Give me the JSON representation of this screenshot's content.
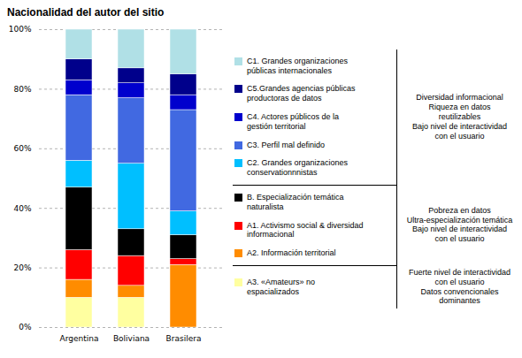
{
  "chart_data": {
    "type": "bar",
    "stacked": true,
    "title": "Nacionalidad del autor del sitio",
    "categories": [
      "Argentina",
      "Boliviana",
      "Brasilera"
    ],
    "series": [
      {
        "name": "A3. «Amateurs» no\nespacializados",
        "color": "#FFFFA0",
        "values": [
          10,
          10,
          0
        ]
      },
      {
        "name": "A2. Información territorial",
        "color": "#FF8C00",
        "values": [
          6,
          4,
          21
        ]
      },
      {
        "name": "A1. Activismo social & diversidad\ninformacional",
        "color": "#FF0000",
        "values": [
          10,
          10,
          2
        ]
      },
      {
        "name": "B. Especialización temática\nnaturalista",
        "color": "#000000",
        "values": [
          21,
          9,
          8
        ]
      },
      {
        "name": "C2. Grandes organizaciones\nconservationnnistas",
        "color": "#00BFFF",
        "values": [
          9,
          22,
          8
        ]
      },
      {
        "name": "C3. Perfil mal definido",
        "color": "#4169E1",
        "values": [
          22,
          22,
          34
        ]
      },
      {
        "name": "C4. Actores públicos de la\ngestión territorial",
        "color": "#0000CD",
        "values": [
          5,
          5,
          5
        ]
      },
      {
        "name": "C5.Grandes agencias públicas\nproductoras de datos",
        "color": "#00008B",
        "values": [
          7,
          5,
          7
        ]
      },
      {
        "name": "C1. Grandes organizaciones\npúblicas internacionales",
        "color": "#B0E0E6",
        "values": [
          10,
          13,
          15
        ]
      }
    ],
    "ylim": [
      0,
      100
    ],
    "yticks": [
      {
        "value": 0,
        "label": "0%"
      },
      {
        "value": 20,
        "label": "20%"
      },
      {
        "value": 40,
        "label": "40%"
      },
      {
        "value": 60,
        "label": "60%"
      },
      {
        "value": 80,
        "label": "80%"
      },
      {
        "value": 100,
        "label": "100%"
      }
    ],
    "grid": true,
    "legend": "right",
    "annotations": [
      "Diversidad informacional\nRiqueza en datos\nreutilizables\nBajo nivel de interactividad\ncon el usuario",
      "Pobreza en datos\nUltra-especialización temática\nBajo nivel de interactividad\ncon el usuario",
      "Fuerte nivel de interactividad\ncon el usuario\nDatos convencionales\ndominantes"
    ]
  }
}
